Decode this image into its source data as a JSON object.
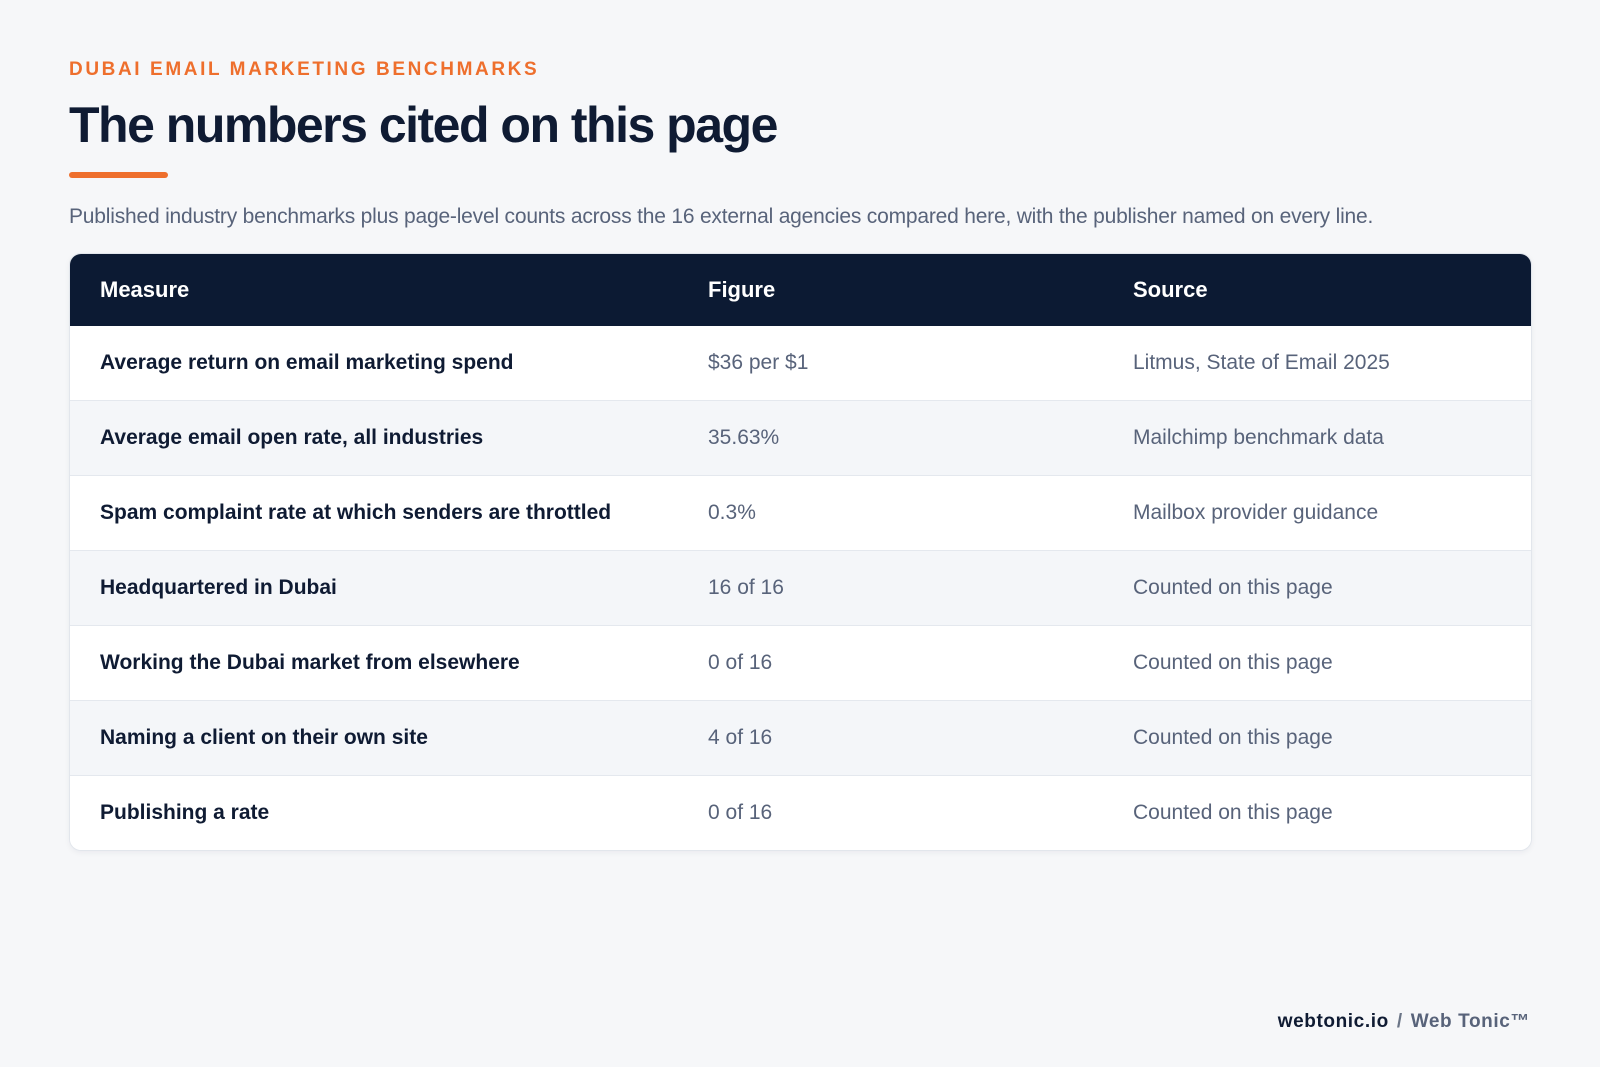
{
  "header": {
    "eyebrow": "DUBAI EMAIL MARKETING BENCHMARKS",
    "title": "The numbers cited on this page",
    "subtitle": "Published industry benchmarks plus page-level counts across the 16 external agencies compared here, with the publisher named on every line."
  },
  "table": {
    "columns": [
      "Measure",
      "Figure",
      "Source"
    ],
    "rows": [
      {
        "measure": "Average return on email marketing spend",
        "figure": "$36 per $1",
        "source": "Litmus, State of Email 2025"
      },
      {
        "measure": "Average email open rate, all industries",
        "figure": "35.63%",
        "source": "Mailchimp benchmark data"
      },
      {
        "measure": "Spam complaint rate at which senders are throttled",
        "figure": "0.3%",
        "source": "Mailbox provider guidance"
      },
      {
        "measure": "Headquartered in Dubai",
        "figure": "16 of 16",
        "source": "Counted on this page"
      },
      {
        "measure": "Working the Dubai market from elsewhere",
        "figure": "0 of 16",
        "source": "Counted on this page"
      },
      {
        "measure": "Naming a client on their own site",
        "figure": "4 of 16",
        "source": "Counted on this page"
      },
      {
        "measure": "Publishing a rate",
        "figure": "0 of 16",
        "source": "Counted on this page"
      }
    ]
  },
  "footer": {
    "domain": "webtonic.io",
    "separator": "/",
    "brand": "Web Tonic™"
  },
  "colors": {
    "accent": "#ee6f2d",
    "navy": "#0c1a33",
    "background": "#f6f7f9"
  }
}
